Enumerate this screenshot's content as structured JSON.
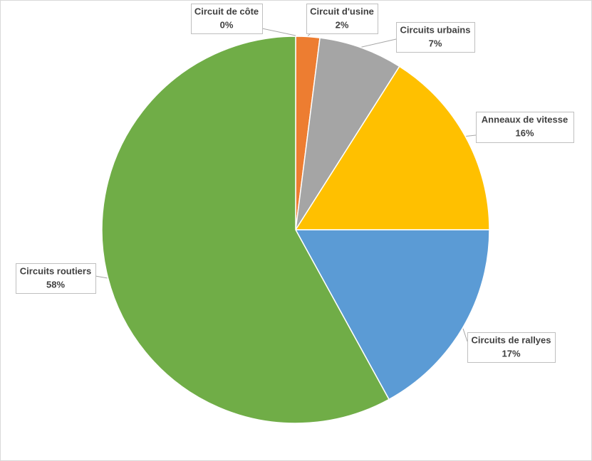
{
  "chart_data": {
    "type": "pie",
    "categories": [
      "Circuit de côte",
      "Circuit d'usine",
      "Circuits urbains",
      "Anneaux de vitesse",
      "Circuits de rallyes",
      "Circuits routiers"
    ],
    "values": [
      0,
      2,
      7,
      16,
      17,
      58
    ],
    "value_labels": [
      "0%",
      "2%",
      "7%",
      "16%",
      "17%",
      "58%"
    ],
    "colors": [
      "#4472c4",
      "#ed7d31",
      "#a5a5a5",
      "#ffc000",
      "#5b9bd5",
      "#70ad47"
    ]
  }
}
